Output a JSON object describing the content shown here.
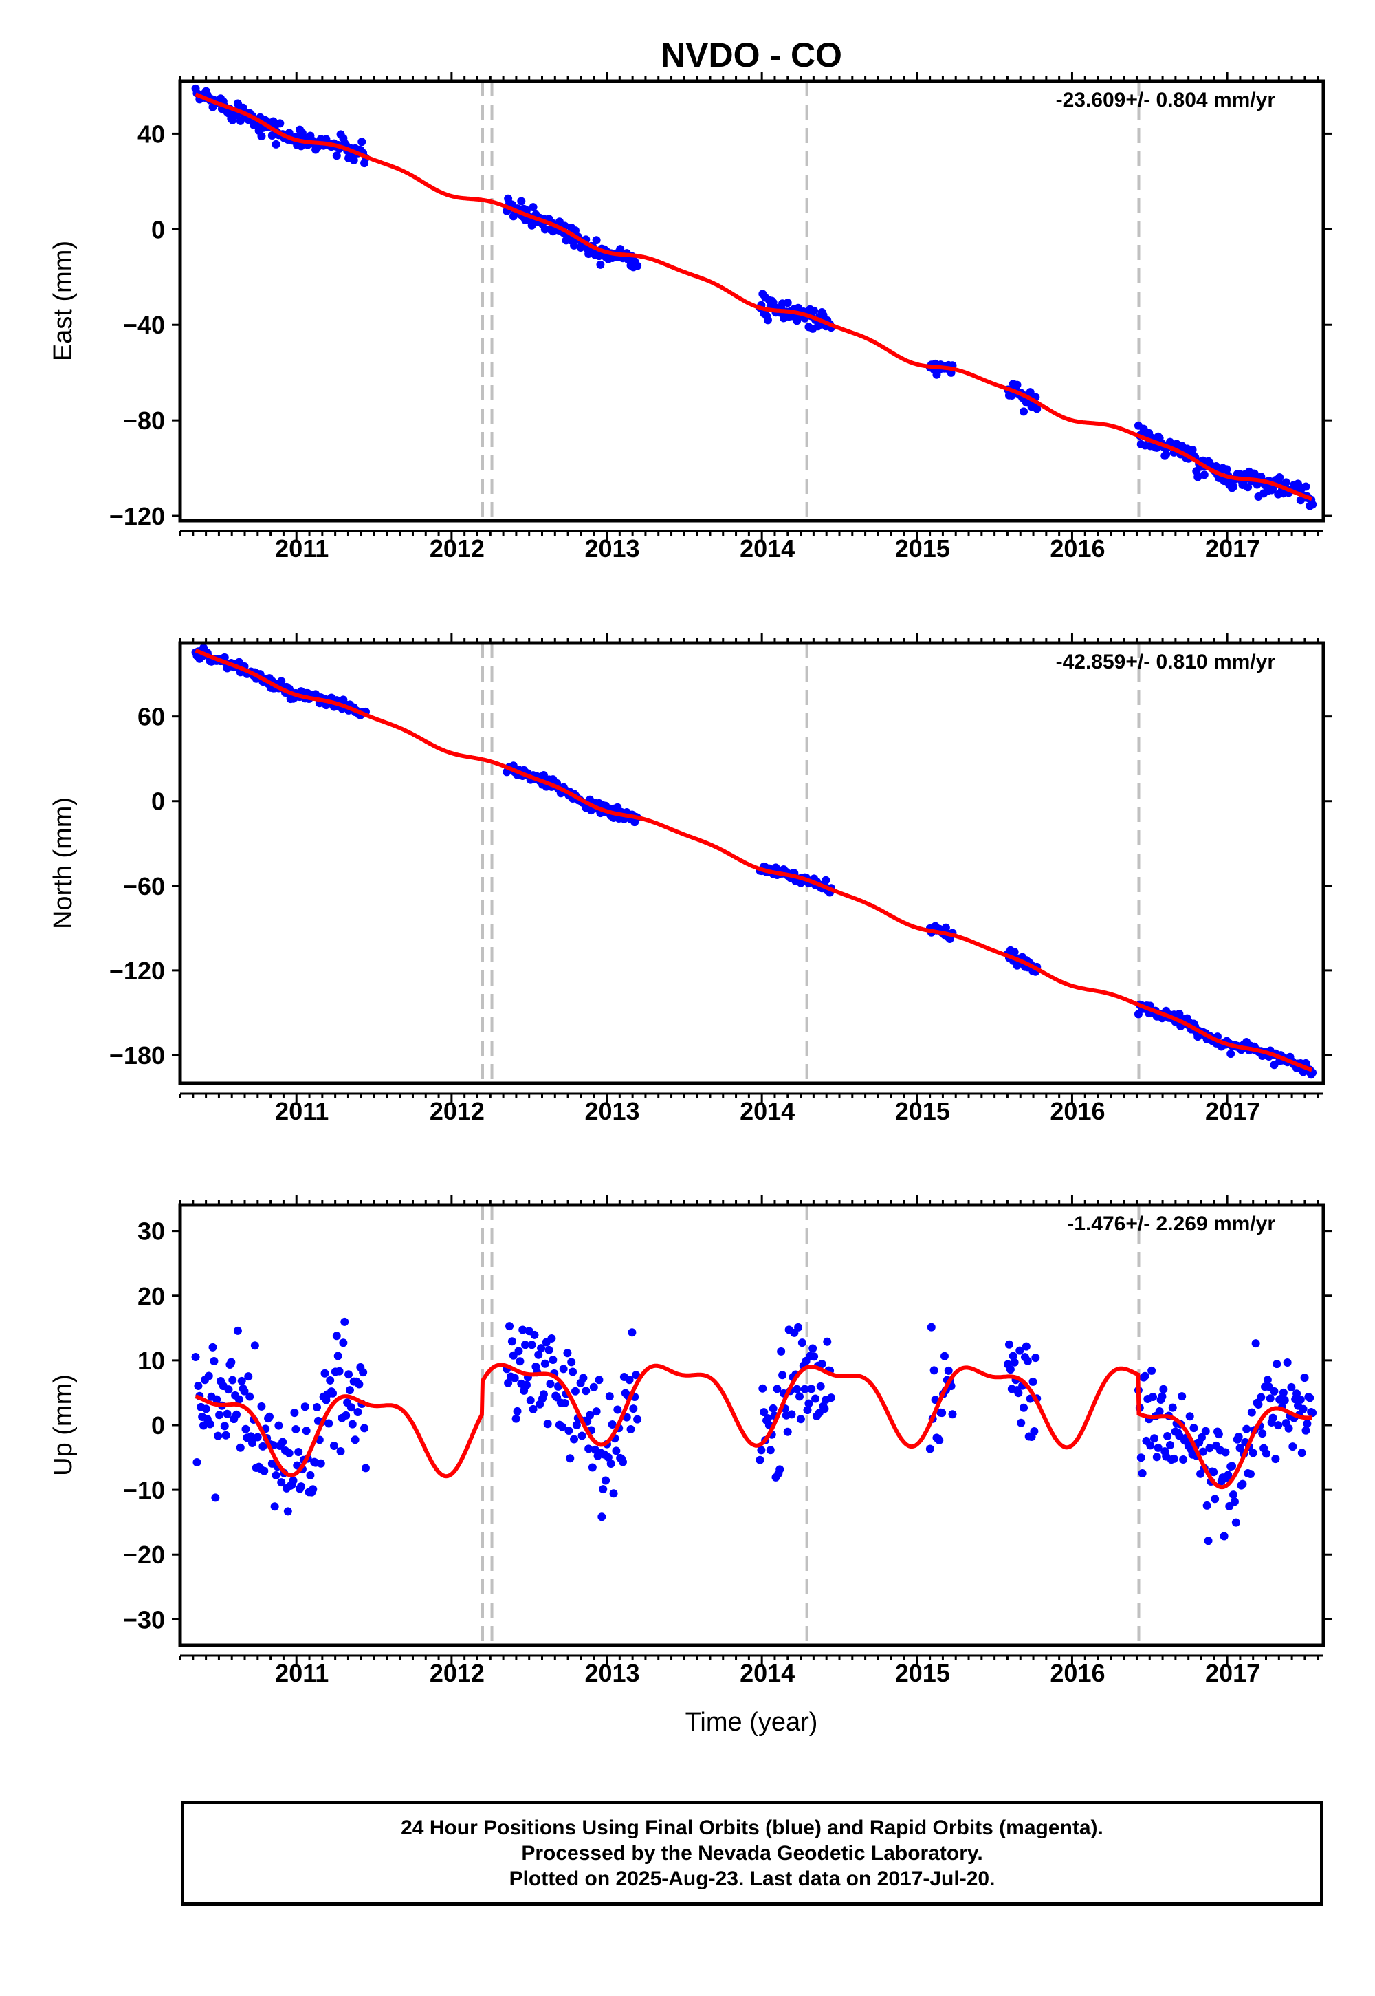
{
  "chart_data": {
    "title": "NVDO - CO",
    "type": "scatter",
    "xlabel": "Time (year)",
    "xlim": [
      2010.25,
      2017.62
    ],
    "xticks": [
      "2011",
      "2012",
      "2013",
      "2014",
      "2015",
      "2016",
      "2017"
    ],
    "xtick_values": [
      2011,
      2012,
      2013,
      2014,
      2015,
      2016,
      2017
    ],
    "vertical_dashed_lines": [
      2012.2,
      2012.26,
      2014.29,
      2016.43
    ],
    "colors": {
      "points": "#0000ff",
      "model": "#ff0000",
      "dashed": "#c0c0c0",
      "axes": "#000000"
    },
    "gaps": [
      [
        2011.45,
        2012.35
      ],
      [
        2013.2,
        2013.98
      ],
      [
        2014.45,
        2015.08
      ],
      [
        2015.23,
        2015.58
      ],
      [
        2015.78,
        2016.42
      ]
    ],
    "panels": [
      {
        "name": "east",
        "ylabel": "East (mm)",
        "ylim": [
          -122,
          62
        ],
        "yticks": [
          40,
          0,
          -40,
          -80,
          -120
        ],
        "yticks_text": [
          "40",
          "0",
          "−40",
          "−80",
          "−120"
        ],
        "rate": "-23.609+/- 0.804 mm/yr",
        "trend_start": [
          2010.35,
          55
        ],
        "trend_end": [
          2017.55,
          -114
        ],
        "seasonal_amplitude": 1.8,
        "scatter_spread": 2.2,
        "offsets": []
      },
      {
        "name": "north",
        "ylabel": "North (mm)",
        "ylim": [
          -200,
          112
        ],
        "yticks": [
          60,
          0,
          -60,
          -120,
          -180
        ],
        "yticks_text": [
          "60",
          "0",
          "−60",
          "−120",
          "−180"
        ],
        "rate": "-42.859+/- 0.810 mm/yr",
        "trend_start": [
          2010.35,
          105
        ],
        "trend_end": [
          2017.55,
          -192
        ],
        "seasonal_amplitude": 2.2,
        "scatter_spread": 2.0,
        "offsets": []
      },
      {
        "name": "up",
        "ylabel": "Up (mm)",
        "ylim": [
          -34,
          34
        ],
        "yticks": [
          30,
          20,
          10,
          0,
          -10,
          -20,
          -30
        ],
        "yticks_text": [
          "30",
          "20",
          "10",
          "0",
          "−10",
          "−20",
          "−30"
        ],
        "rate": "-1.476+/- 2.269 mm/yr",
        "trend_start": [
          2010.35,
          0
        ],
        "trend_end": [
          2017.55,
          -1
        ],
        "seasonal_amplitude": 5.5,
        "scatter_spread": 4.5,
        "offsets": [
          [
            2012.2,
            5
          ],
          [
            2016.43,
            -6
          ]
        ]
      }
    ]
  },
  "footer": {
    "line1": "24 Hour Positions Using Final Orbits (blue) and Rapid Orbits (magenta).",
    "line2": "Processed by the Nevada Geodetic Laboratory.",
    "line3": "Plotted on 2025-Aug-23. Last data on 2017-Jul-20."
  }
}
